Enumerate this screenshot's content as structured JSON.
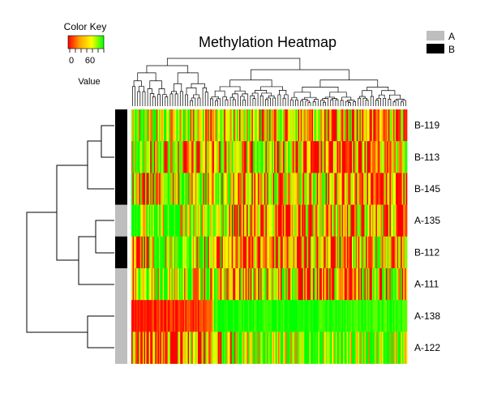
{
  "chart_data": {
    "type": "heatmap",
    "title": "Methylation Heatmap",
    "color_key": {
      "title": "Color Key",
      "label": "Value",
      "ticks": [
        "0",
        "60"
      ],
      "colors": [
        "#ff0000",
        "#ffa500",
        "#ffff00",
        "#00ff00"
      ]
    },
    "legend": {
      "position": "top-right",
      "entries": [
        {
          "label": "A",
          "color": "#bebebe"
        },
        {
          "label": "B",
          "color": "#000000"
        }
      ]
    },
    "rows": [
      {
        "label": "B-119",
        "group": "B"
      },
      {
        "label": "B-113",
        "group": "B"
      },
      {
        "label": "B-145",
        "group": "B"
      },
      {
        "label": "A-135",
        "group": "A"
      },
      {
        "label": "B-112",
        "group": "B"
      },
      {
        "label": "A-111",
        "group": "A"
      },
      {
        "label": "A-138",
        "group": "A"
      },
      {
        "label": "A-122",
        "group": "A"
      }
    ],
    "row_dendrogram": "hierarchical clustering (left)",
    "column_dendrogram": "hierarchical clustering (top)",
    "row_profiles": [
      [
        [
          0,
          0.55
        ],
        [
          0.1,
          0.6
        ],
        [
          0.3,
          0.55
        ],
        [
          0.5,
          0.4
        ],
        [
          0.7,
          0.45
        ],
        [
          0.85,
          0.3
        ],
        [
          1,
          0.2
        ]
      ],
      [
        [
          0,
          0.6
        ],
        [
          0.1,
          0.45
        ],
        [
          0.3,
          0.4
        ],
        [
          0.5,
          0.5
        ],
        [
          0.7,
          0.3
        ],
        [
          0.85,
          0.2
        ],
        [
          1,
          0.35
        ]
      ],
      [
        [
          0,
          0.55
        ],
        [
          0.08,
          0.35
        ],
        [
          0.2,
          0.75
        ],
        [
          0.3,
          0.7
        ],
        [
          0.45,
          0.25
        ],
        [
          0.6,
          0.55
        ],
        [
          0.75,
          0.2
        ],
        [
          0.9,
          0.15
        ],
        [
          1,
          0.2
        ]
      ],
      [
        [
          0,
          0.85
        ],
        [
          0.1,
          0.8
        ],
        [
          0.3,
          0.75
        ],
        [
          0.4,
          0.35
        ],
        [
          0.55,
          0.3
        ],
        [
          0.7,
          0.45
        ],
        [
          0.85,
          0.35
        ],
        [
          1,
          0.3
        ]
      ],
      [
        [
          0,
          0.25
        ],
        [
          0.05,
          0.35
        ],
        [
          0.15,
          0.8
        ],
        [
          0.3,
          0.5
        ],
        [
          0.4,
          0.15
        ],
        [
          0.55,
          0.25
        ],
        [
          0.7,
          0.3
        ],
        [
          0.85,
          0.45
        ],
        [
          1,
          0.3
        ]
      ],
      [
        [
          0,
          0.55
        ],
        [
          0.15,
          0.75
        ],
        [
          0.3,
          0.6
        ],
        [
          0.4,
          0.35
        ],
        [
          0.55,
          0.5
        ],
        [
          0.7,
          0.3
        ],
        [
          0.85,
          0.4
        ],
        [
          1,
          0.45
        ]
      ],
      [
        [
          0,
          0.05
        ],
        [
          0.1,
          0.08
        ],
        [
          0.2,
          0.1
        ],
        [
          0.29,
          0.12
        ],
        [
          0.3,
          0.95
        ],
        [
          0.5,
          0.95
        ],
        [
          0.7,
          0.95
        ],
        [
          0.85,
          0.9
        ],
        [
          1,
          0.92
        ]
      ],
      [
        [
          0,
          0.3
        ],
        [
          0.1,
          0.15
        ],
        [
          0.2,
          0.2
        ],
        [
          0.3,
          0.35
        ],
        [
          0.4,
          0.75
        ],
        [
          0.55,
          0.85
        ],
        [
          0.7,
          0.8
        ],
        [
          0.85,
          0.85
        ],
        [
          1,
          0.85
        ]
      ]
    ]
  }
}
